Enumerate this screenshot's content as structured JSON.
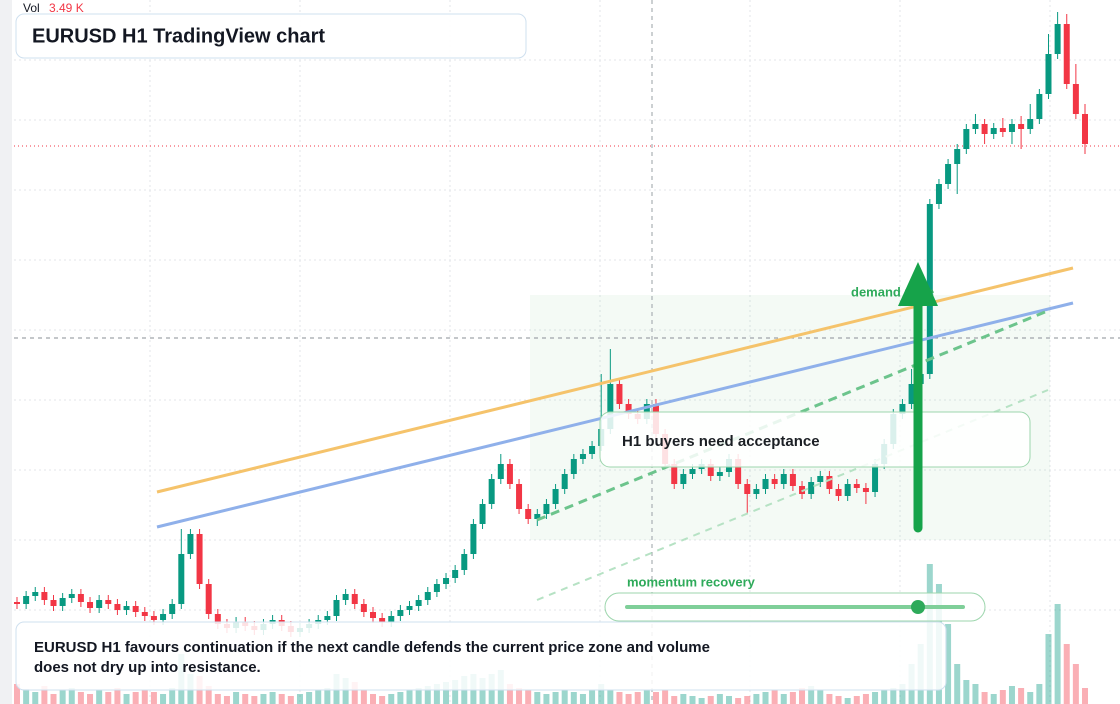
{
  "chart_data": {
    "type": "candlestick",
    "title": "EURUSD H1 TradingView chart",
    "ylim": [
      0,
      704
    ],
    "up_color": "#089981",
    "down_color": "#f23645",
    "ohlc": [
      [
        102,
        107,
        95,
        100
      ],
      [
        100,
        113,
        95,
        108
      ],
      [
        108,
        117,
        103,
        112
      ],
      [
        112,
        117,
        99,
        104
      ],
      [
        104,
        109,
        93,
        98
      ],
      [
        98,
        111,
        93,
        106
      ],
      [
        106,
        115,
        101,
        110
      ],
      [
        110,
        115,
        97,
        102
      ],
      [
        102,
        107,
        91,
        96
      ],
      [
        96,
        109,
        91,
        104
      ],
      [
        104,
        109,
        95,
        100
      ],
      [
        100,
        105,
        89,
        94
      ],
      [
        94,
        103,
        89,
        98
      ],
      [
        98,
        103,
        87,
        92
      ],
      [
        92,
        97,
        83,
        88
      ],
      [
        88,
        93,
        79,
        84
      ],
      [
        84,
        95,
        79,
        90
      ],
      [
        90,
        105,
        85,
        100
      ],
      [
        100,
        175,
        95,
        150
      ],
      [
        150,
        175,
        145,
        170
      ],
      [
        170,
        175,
        115,
        120
      ],
      [
        120,
        125,
        85,
        90
      ],
      [
        90,
        95,
        75,
        80
      ],
      [
        80,
        85,
        71,
        76
      ],
      [
        76,
        87,
        71,
        82
      ],
      [
        82,
        87,
        73,
        78
      ],
      [
        78,
        83,
        69,
        74
      ],
      [
        74,
        85,
        69,
        80
      ],
      [
        80,
        89,
        75,
        84
      ],
      [
        84,
        89,
        73,
        78
      ],
      [
        78,
        83,
        67,
        72
      ],
      [
        72,
        81,
        67,
        76
      ],
      [
        76,
        85,
        71,
        80
      ],
      [
        80,
        89,
        75,
        84
      ],
      [
        84,
        93,
        79,
        88
      ],
      [
        88,
        109,
        83,
        104
      ],
      [
        104,
        115,
        99,
        110
      ],
      [
        110,
        115,
        95,
        100
      ],
      [
        100,
        105,
        87,
        92
      ],
      [
        92,
        97,
        81,
        86
      ],
      [
        86,
        91,
        77,
        82
      ],
      [
        82,
        93,
        77,
        88
      ],
      [
        88,
        99,
        83,
        94
      ],
      [
        94,
        103,
        89,
        98
      ],
      [
        98,
        109,
        93,
        104
      ],
      [
        104,
        117,
        99,
        112
      ],
      [
        112,
        125,
        107,
        120
      ],
      [
        120,
        131,
        115,
        126
      ],
      [
        126,
        139,
        121,
        134
      ],
      [
        134,
        155,
        129,
        150
      ],
      [
        150,
        185,
        145,
        180
      ],
      [
        180,
        205,
        175,
        200
      ],
      [
        200,
        230,
        195,
        225
      ],
      [
        225,
        250,
        220,
        240
      ],
      [
        240,
        245,
        215,
        220
      ],
      [
        220,
        225,
        190,
        195
      ],
      [
        195,
        200,
        180,
        185
      ],
      [
        185,
        195,
        178,
        190
      ],
      [
        190,
        205,
        185,
        200
      ],
      [
        200,
        220,
        195,
        215
      ],
      [
        215,
        235,
        210,
        230
      ],
      [
        230,
        250,
        225,
        245
      ],
      [
        245,
        255,
        240,
        250
      ],
      [
        250,
        263,
        245,
        258
      ],
      [
        258,
        330,
        253,
        275
      ],
      [
        275,
        355,
        270,
        320
      ],
      [
        320,
        325,
        295,
        300
      ],
      [
        300,
        305,
        285,
        290
      ],
      [
        290,
        295,
        280,
        285
      ],
      [
        285,
        305,
        280,
        300
      ],
      [
        300,
        305,
        265,
        270
      ],
      [
        270,
        275,
        235,
        240
      ],
      [
        240,
        245,
        215,
        220
      ],
      [
        220,
        235,
        215,
        230
      ],
      [
        230,
        240,
        225,
        235
      ],
      [
        235,
        245,
        230,
        240
      ],
      [
        240,
        245,
        223,
        228
      ],
      [
        228,
        237,
        223,
        232
      ],
      [
        232,
        250,
        227,
        245
      ],
      [
        245,
        250,
        215,
        220
      ],
      [
        220,
        225,
        190,
        210
      ],
      [
        210,
        220,
        205,
        215
      ],
      [
        215,
        230,
        210,
        225
      ],
      [
        225,
        230,
        215,
        220
      ],
      [
        220,
        235,
        215,
        230
      ],
      [
        230,
        235,
        213,
        218
      ],
      [
        218,
        223,
        205,
        210
      ],
      [
        210,
        227,
        205,
        222
      ],
      [
        222,
        233,
        217,
        228
      ],
      [
        228,
        233,
        210,
        215
      ],
      [
        215,
        220,
        203,
        208
      ],
      [
        208,
        225,
        203,
        220
      ],
      [
        220,
        225,
        211,
        216
      ],
      [
        216,
        221,
        200,
        212
      ],
      [
        212,
        245,
        207,
        240
      ],
      [
        240,
        265,
        235,
        260
      ],
      [
        260,
        295,
        255,
        290
      ],
      [
        290,
        305,
        285,
        300
      ],
      [
        300,
        335,
        295,
        320
      ],
      [
        320,
        345,
        315,
        330
      ],
      [
        330,
        505,
        325,
        500
      ],
      [
        500,
        525,
        495,
        520
      ],
      [
        520,
        545,
        515,
        540
      ],
      [
        540,
        560,
        510,
        555
      ],
      [
        555,
        580,
        550,
        575
      ],
      [
        575,
        590,
        570,
        580
      ],
      [
        580,
        585,
        560,
        570
      ],
      [
        570,
        581,
        565,
        576
      ],
      [
        576,
        586,
        567,
        572
      ],
      [
        572,
        585,
        560,
        580
      ],
      [
        580,
        588,
        555,
        575
      ],
      [
        575,
        600,
        570,
        585
      ],
      [
        585,
        615,
        580,
        610
      ],
      [
        610,
        670,
        605,
        650
      ],
      [
        650,
        692,
        645,
        680
      ],
      [
        680,
        690,
        615,
        620
      ],
      [
        620,
        640,
        585,
        590
      ],
      [
        590,
        600,
        550,
        560
      ]
    ],
    "volume": [
      20,
      15,
      12,
      18,
      10,
      14,
      16,
      12,
      10,
      14,
      12,
      16,
      10,
      12,
      14,
      12,
      10,
      16,
      50,
      30,
      28,
      18,
      10,
      8,
      12,
      10,
      8,
      10,
      12,
      10,
      8,
      10,
      12,
      14,
      16,
      30,
      26,
      22,
      14,
      10,
      8,
      10,
      12,
      14,
      16,
      18,
      20,
      22,
      24,
      28,
      30,
      26,
      30,
      34,
      20,
      16,
      14,
      12,
      10,
      12,
      14,
      12,
      10,
      14,
      20,
      14,
      12,
      10,
      12,
      14,
      12,
      14,
      8,
      10,
      8,
      6,
      8,
      10,
      8,
      6,
      8,
      10,
      12,
      14,
      10,
      12,
      16,
      18,
      14,
      10,
      8,
      6,
      8,
      10,
      12,
      14,
      16,
      20,
      40,
      60,
      140,
      120,
      80,
      40,
      24,
      20,
      12,
      10,
      14,
      18,
      16,
      12,
      20,
      70,
      100,
      60,
      40,
      16
    ]
  },
  "legend": {
    "volume_label": "Vol",
    "volume_value": "3.49 K"
  },
  "annotations": {
    "callout": "H1 buyers need acceptance",
    "zone_label": "demand zone",
    "slider_label": "momentum recovery",
    "summary": [
      "EURUSD H1 favours continuation if the next candle defends the current price zone and volume",
      "does not dry up into resistance."
    ]
  }
}
